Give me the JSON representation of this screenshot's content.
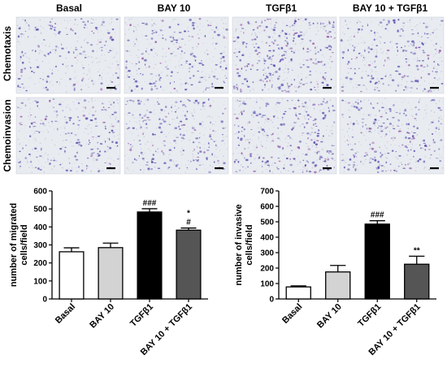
{
  "micrographs": {
    "columns": [
      "Basal",
      "BAY 10",
      "TGFβ1",
      "BAY 10 + TGFβ1"
    ],
    "rows": [
      "Chemotaxis",
      "Chemoinvasion"
    ],
    "colors": {
      "background": "#e8ebf0",
      "cell": "#6b63b8",
      "cell_dense": "#5a4fae",
      "membrane": "#b9bfd0",
      "scale_bar": "#000000"
    }
  },
  "chart_data": [
    {
      "type": "bar",
      "categories": [
        "Basal",
        "BAY 10",
        "TGFβ1",
        "BAY 10 + TGFβ1"
      ],
      "values": [
        262,
        285,
        483,
        382
      ],
      "errors": [
        22,
        25,
        18,
        12
      ],
      "colors": [
        "#ffffff",
        "#d3d3d3",
        "#000000",
        "#555555"
      ],
      "annotations": [
        "",
        "",
        "###",
        "*\n#"
      ],
      "xlabel": "",
      "ylabel": "number of migrated cells/field",
      "ylim": [
        0,
        600
      ],
      "yticks": [
        0,
        100,
        200,
        300,
        400,
        500,
        600
      ],
      "grid": false
    },
    {
      "type": "bar",
      "categories": [
        "Basal",
        "BAY 10",
        "TGFβ1",
        "BAY 10 + TGFβ1"
      ],
      "values": [
        78,
        175,
        485,
        225
      ],
      "errors": [
        7,
        42,
        22,
        52
      ],
      "colors": [
        "#ffffff",
        "#d3d3d3",
        "#000000",
        "#555555"
      ],
      "annotations": [
        "",
        "",
        "###",
        "**"
      ],
      "xlabel": "",
      "ylabel": "number of invasive cells/field",
      "ylim": [
        0,
        700
      ],
      "yticks": [
        0,
        100,
        200,
        300,
        400,
        500,
        600,
        700
      ],
      "grid": false
    }
  ]
}
